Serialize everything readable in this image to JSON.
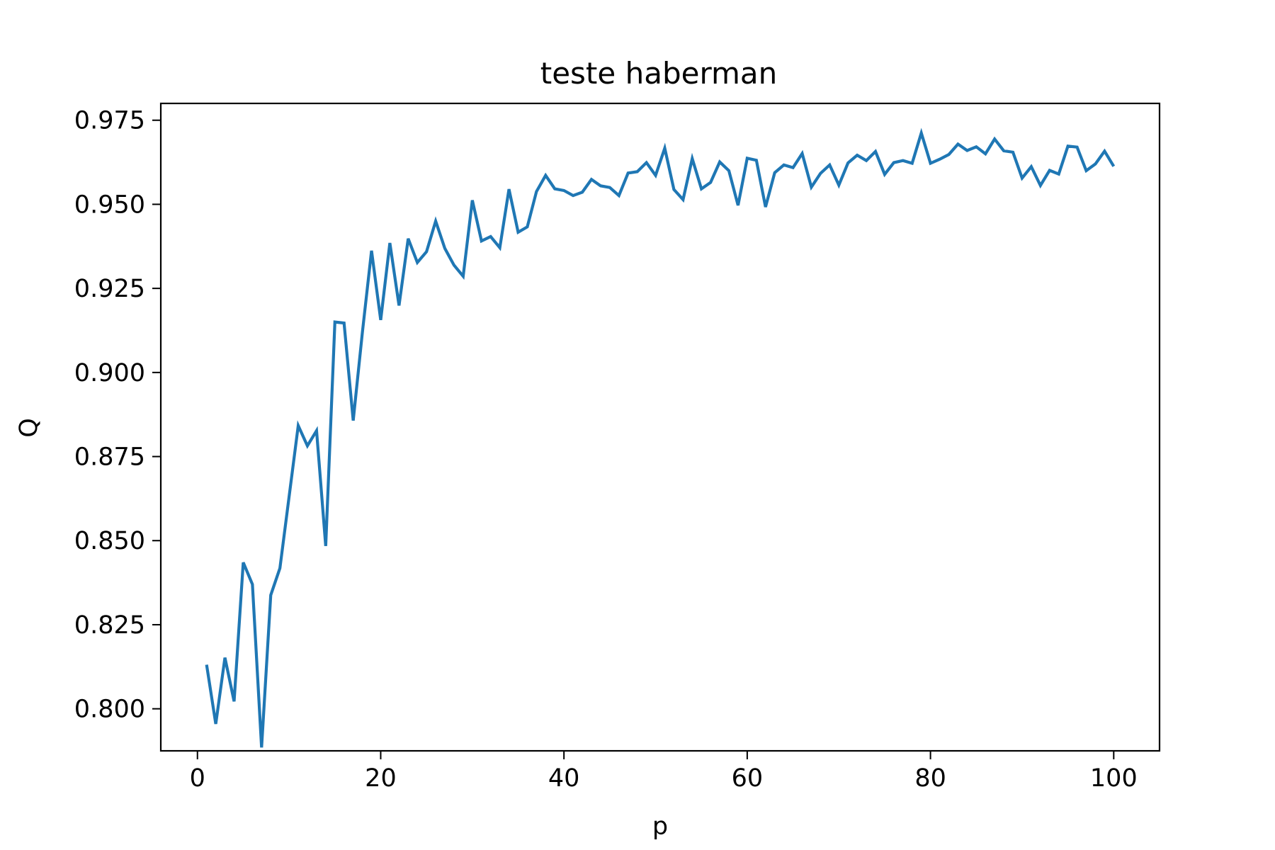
{
  "chart_data": {
    "type": "line",
    "title": "teste haberman",
    "xlabel": "p",
    "ylabel": "Q",
    "xlim": [
      -4,
      105
    ],
    "ylim": [
      0.7875,
      0.98
    ],
    "xticks": [
      0,
      20,
      40,
      60,
      80,
      100
    ],
    "yticks": [
      0.8,
      0.825,
      0.85,
      0.875,
      0.9,
      0.925,
      0.95,
      0.975
    ],
    "xtick_labels": [
      "0",
      "20",
      "40",
      "60",
      "80",
      "100"
    ],
    "ytick_labels": [
      "0.800",
      "0.825",
      "0.850",
      "0.875",
      "0.900",
      "0.925",
      "0.950",
      "0.975"
    ],
    "grid": false,
    "legend": "none",
    "line_color": "#1f77b4",
    "series": [
      {
        "x": [
          1,
          2,
          3,
          4,
          5,
          6,
          7,
          8,
          9,
          10,
          11,
          12,
          13,
          14,
          15,
          16,
          17,
          18,
          19,
          20,
          21,
          22,
          23,
          24,
          25,
          26,
          27,
          28,
          29,
          30,
          31,
          32,
          33,
          34,
          35,
          36,
          37,
          38,
          39,
          40,
          41,
          42,
          43,
          44,
          45,
          46,
          47,
          48,
          49,
          50,
          51,
          52,
          53,
          54,
          55,
          56,
          57,
          58,
          59,
          60,
          61,
          62,
          63,
          64,
          65,
          66,
          67,
          68,
          69,
          70,
          71,
          72,
          73,
          74,
          75,
          76,
          77,
          78,
          79,
          80,
          81,
          82,
          83,
          84,
          85,
          86,
          87,
          88,
          89,
          90,
          91,
          92,
          93,
          94,
          95,
          96,
          97,
          98,
          99,
          100
        ],
        "values": [
          0.8131,
          0.7955,
          0.8152,
          0.8022,
          0.8435,
          0.837,
          0.7885,
          0.8338,
          0.8418,
          0.863,
          0.8842,
          0.8782,
          0.8827,
          0.8484,
          0.915,
          0.9147,
          0.8857,
          0.9119,
          0.9362,
          0.9156,
          0.9385,
          0.9199,
          0.9398,
          0.9327,
          0.9359,
          0.945,
          0.9369,
          0.9319,
          0.9286,
          0.9512,
          0.9391,
          0.9404,
          0.9371,
          0.9545,
          0.9417,
          0.9433,
          0.9538,
          0.9586,
          0.9546,
          0.9541,
          0.9526,
          0.9536,
          0.9574,
          0.9555,
          0.955,
          0.9526,
          0.9593,
          0.9597,
          0.9624,
          0.9586,
          0.9667,
          0.9544,
          0.9514,
          0.9636,
          0.9546,
          0.9565,
          0.9626,
          0.96,
          0.9497,
          0.9637,
          0.9631,
          0.9492,
          0.9594,
          0.9617,
          0.9609,
          0.9651,
          0.9551,
          0.9592,
          0.9617,
          0.9557,
          0.9623,
          0.9646,
          0.963,
          0.9657,
          0.9589,
          0.9624,
          0.963,
          0.9622,
          0.9712,
          0.9622,
          0.9634,
          0.9648,
          0.9679,
          0.966,
          0.9671,
          0.965,
          0.9694,
          0.9659,
          0.9655,
          0.9578,
          0.9612,
          0.9556,
          0.9601,
          0.959,
          0.9673,
          0.967,
          0.96,
          0.962,
          0.9658,
          0.9613
        ]
      }
    ]
  }
}
